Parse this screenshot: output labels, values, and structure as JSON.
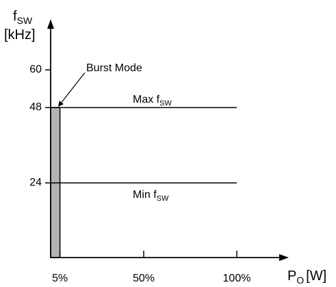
{
  "chart_data": {
    "type": "line",
    "x_axis": {
      "label_main": "P",
      "label_sub": "O",
      "label_unit": "[W]",
      "ticks": [
        {
          "value": 5,
          "label": "5%"
        },
        {
          "value": 50,
          "label": "50%"
        },
        {
          "value": 100,
          "label": "100%"
        }
      ],
      "range": [
        0,
        100
      ]
    },
    "y_axis": {
      "label_main": "f",
      "label_sub": "SW",
      "label_unit": "[kHz]",
      "ticks": [
        {
          "value": 24,
          "label": "24"
        },
        {
          "value": 48,
          "label": "48"
        },
        {
          "value": 60,
          "label": "60"
        }
      ],
      "range": [
        0,
        60
      ]
    },
    "series": [
      {
        "name_main": "Max f",
        "name_sub": "SW",
        "x": [
          0,
          100
        ],
        "y": [
          48,
          48
        ]
      },
      {
        "name_main": "Min f",
        "name_sub": "SW",
        "x": [
          0,
          100
        ],
        "y": [
          24,
          24
        ]
      }
    ],
    "burst_region": {
      "x": [
        0,
        5
      ],
      "y": [
        0,
        48
      ],
      "color": "#b3b3b3"
    },
    "annotations": [
      {
        "text": "Burst Mode",
        "points_to": {
          "x": 5,
          "y": 48
        }
      }
    ],
    "grid": false,
    "legend": "none"
  }
}
